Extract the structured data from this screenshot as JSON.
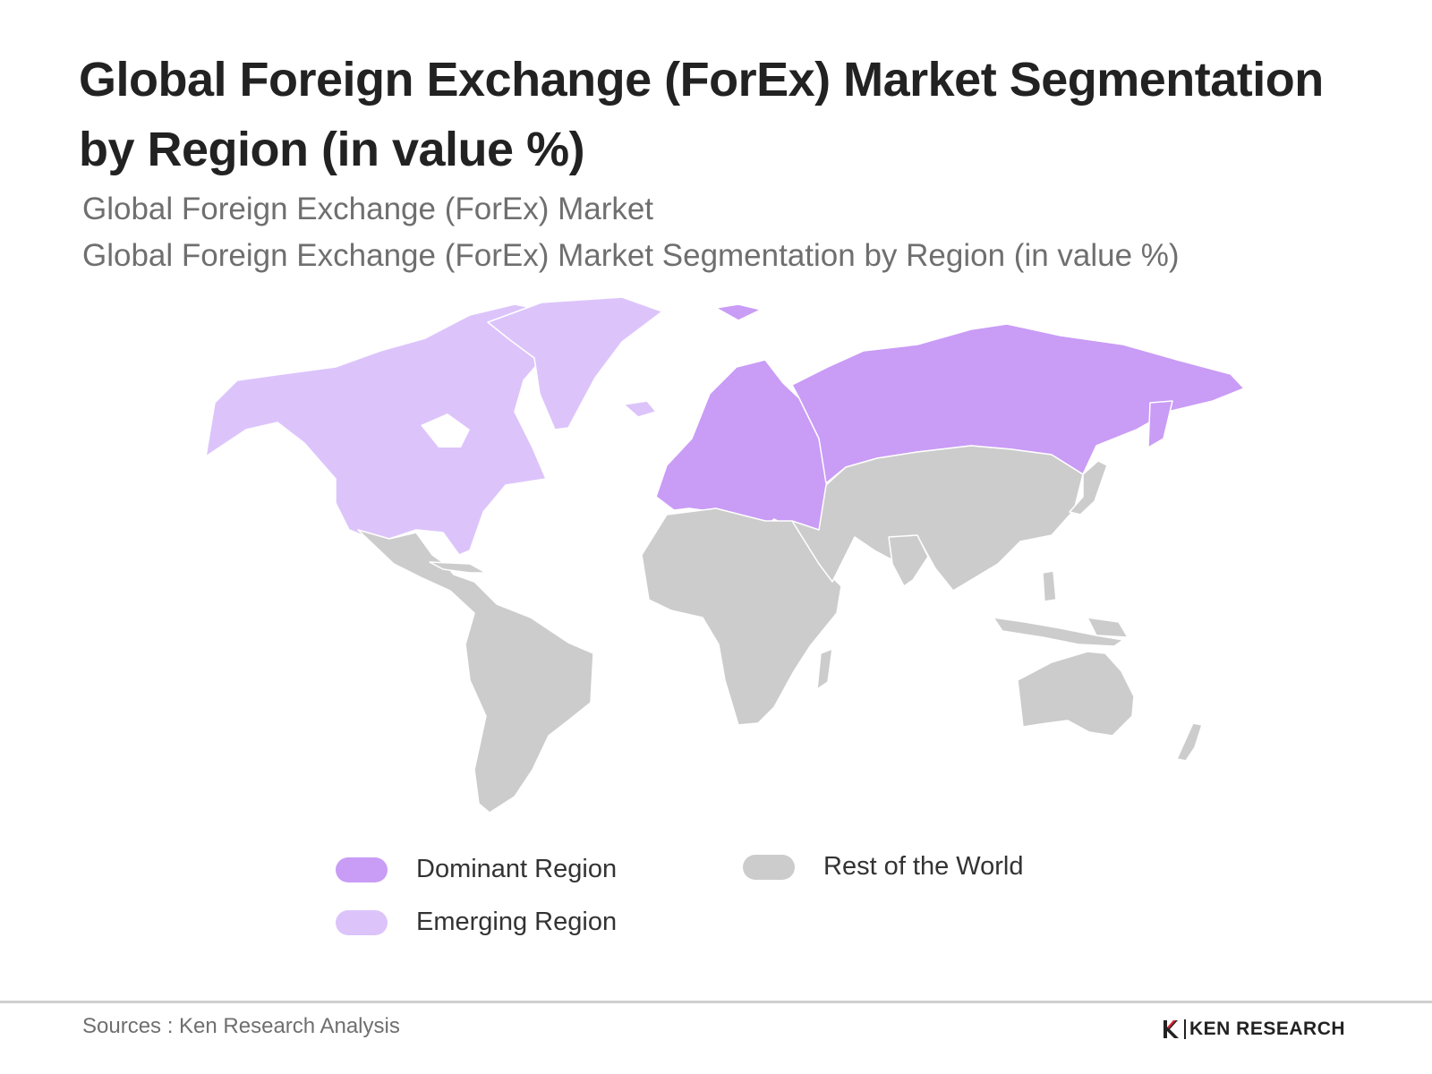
{
  "title": "Global Foreign Exchange (ForEx) Market Segmentation by Region (in value %)",
  "subtitle_1": "Global Foreign Exchange (ForEx) Market",
  "subtitle_2": "Global Foreign Exchange (ForEx) Market Segmentation by Region (in value %)",
  "colors": {
    "dominant": "#c99cf6",
    "emerging": "#dcc4fb",
    "rest": "#cccccc",
    "border": "#ffffff"
  },
  "map": {
    "regions": [
      {
        "name": "north-america",
        "category": "emerging"
      },
      {
        "name": "greenland",
        "category": "emerging"
      },
      {
        "name": "europe",
        "category": "dominant"
      },
      {
        "name": "russia",
        "category": "dominant"
      },
      {
        "name": "latin-america",
        "category": "rest"
      },
      {
        "name": "africa",
        "category": "rest"
      },
      {
        "name": "middle-east",
        "category": "rest"
      },
      {
        "name": "asia",
        "category": "rest"
      },
      {
        "name": "oceania",
        "category": "rest"
      }
    ]
  },
  "legend": {
    "dominant_label": "Dominant Region",
    "emerging_label": "Emerging Region",
    "rest_label": "Rest of the World"
  },
  "source": "Sources : Ken Research Analysis",
  "logo_text": "KEN RESEARCH"
}
